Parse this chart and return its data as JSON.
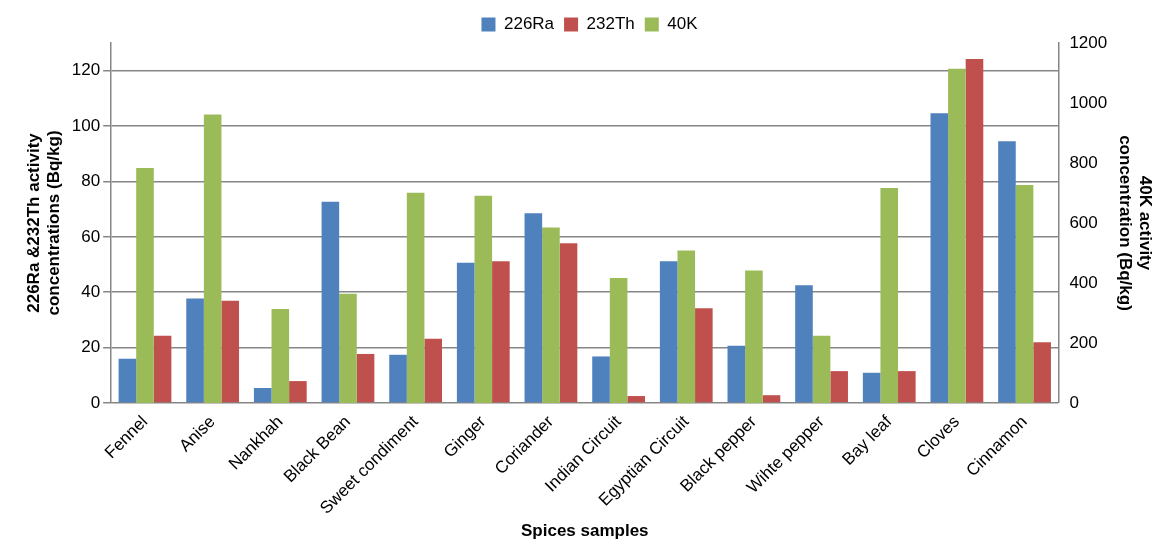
{
  "chart_data": {
    "type": "bar",
    "xlabel": "Spices samples",
    "ylabel": "226Ra &232Th activity concentrations (Bq/kg)",
    "y2label": "40K activity concentration (Bq/kg)",
    "categories": [
      "Fennel",
      "Anise",
      "Nankhah",
      "Black Bean",
      "Sweet condiment",
      "Ginger",
      "Coriander",
      "Indian Circuit",
      "Egyptian Circuit",
      "Black pepper",
      "Wihte pepper",
      "Bay leaf",
      "Cloves",
      "Cinnamon"
    ],
    "series": [
      {
        "name": "226Ra",
        "color": "#4f81bd",
        "values": [
          16,
          37.7,
          5.4,
          72.7,
          17.4,
          50.6,
          68.5,
          16.8,
          51.2,
          20.7,
          42.5,
          10.9,
          104.6,
          94.5
        ]
      },
      {
        "name": "232Th",
        "color": "#c0504d",
        "values": [
          24.3,
          36.9,
          7.9,
          17.7,
          23.2,
          51.2,
          57.7,
          2.5,
          34.2,
          2.8,
          11.5,
          11.5,
          124.2,
          21.9
        ]
      },
      {
        "name": "40K",
        "color": "#9bbb59",
        "axis": "y2",
        "values": [
          783,
          962,
          313,
          364,
          701,
          691,
          585,
          417,
          508,
          442,
          224,
          717,
          1114,
          727
        ]
      }
    ],
    "ylim": [
      0,
      130
    ],
    "yticks": [
      0,
      20,
      40,
      60,
      80,
      100,
      120
    ],
    "y2lim": [
      0,
      1200
    ],
    "y2ticks": [
      0,
      200,
      400,
      600,
      800,
      1000,
      1200
    ],
    "grid": "y",
    "legend": "top"
  }
}
